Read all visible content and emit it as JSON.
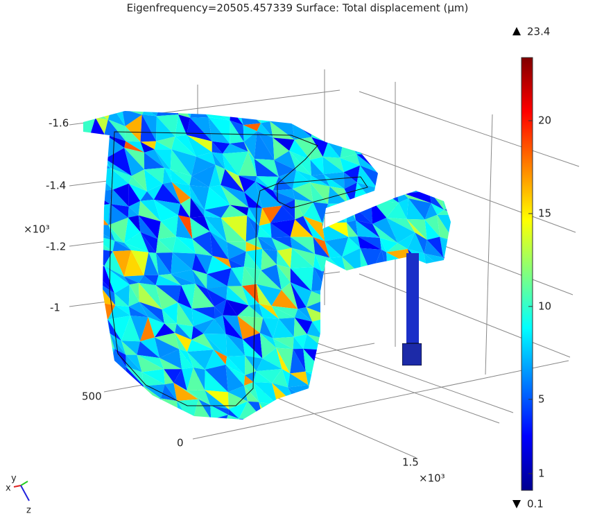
{
  "title": "Eigenfrequency=20505.457339   Surface: Total displacement (µm)",
  "colorbar": {
    "max": 23.4,
    "min": 0.1,
    "ticks": [
      1,
      5,
      10,
      15,
      20
    ]
  },
  "axes": {
    "z_ticks": [
      "-1.6",
      "-1.4",
      "-1.2",
      "-1"
    ],
    "z_exponent": "×10³",
    "y_ticks": [
      "500",
      "0"
    ],
    "x_ticks": [
      "1.5"
    ],
    "x_exponent": "×10³"
  },
  "triad": {
    "y": "y",
    "x": "x",
    "z": "z"
  }
}
